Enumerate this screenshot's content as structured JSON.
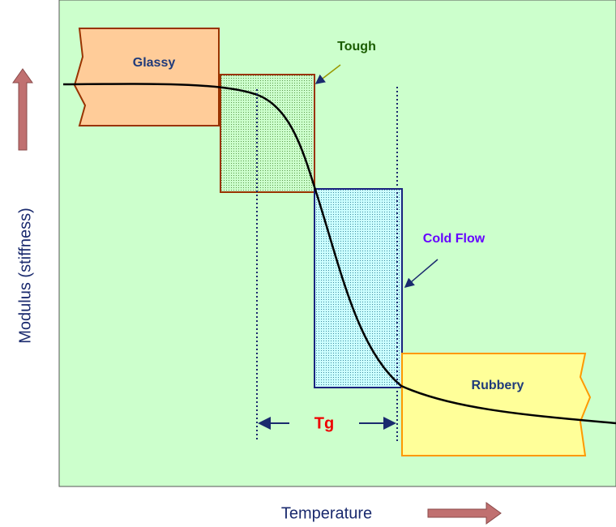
{
  "regions": {
    "glassy": "Glassy",
    "tough": "Tough",
    "cold_flow": "Cold Flow",
    "rubbery": "Rubbery"
  },
  "transition": "Tg",
  "axes": {
    "y_label": "Modulus (stiffness)",
    "x_label": "Temperature"
  }
}
